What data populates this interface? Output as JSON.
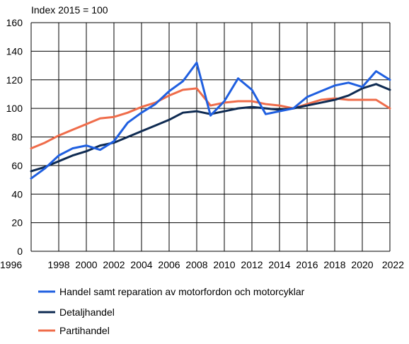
{
  "chart_data": {
    "type": "line",
    "title": "",
    "unit_label": "Index 2015 = 100",
    "xlabel": "",
    "ylabel": "",
    "x": [
      1996,
      1997,
      1998,
      1999,
      2000,
      2001,
      2002,
      2003,
      2004,
      2005,
      2006,
      2007,
      2008,
      2009,
      2010,
      2011,
      2012,
      2013,
      2014,
      2015,
      2016,
      2017,
      2018,
      2019,
      2020,
      2021,
      2022
    ],
    "xticks": [
      "1996",
      "1998",
      "2000",
      "2002",
      "2004",
      "2006",
      "2008",
      "2010",
      "2012",
      "2014",
      "2016",
      "2018",
      "2020",
      "2022"
    ],
    "xtick_values": [
      1996,
      1998,
      2000,
      2002,
      2004,
      2006,
      2008,
      2010,
      2012,
      2014,
      2016,
      2018,
      2020,
      2022
    ],
    "yticks": [
      "0",
      "20",
      "40",
      "60",
      "80",
      "100",
      "120",
      "140",
      "160"
    ],
    "ytick_values": [
      0,
      20,
      40,
      60,
      80,
      100,
      120,
      140,
      160
    ],
    "xlim": [
      1996,
      2022
    ],
    "ylim": [
      0,
      160
    ],
    "grid": true,
    "legend_position": "bottom",
    "series": [
      {
        "name": "Handel samt reparation av motorfordon och motorcyklar",
        "color": "#1f5fe0",
        "values": [
          51,
          58,
          67,
          72,
          74,
          71,
          77,
          90,
          97,
          103,
          112,
          119,
          132,
          95,
          105,
          121,
          113,
          96,
          98,
          100,
          108,
          112,
          116,
          118,
          115,
          126,
          120
        ]
      },
      {
        "name": "Detaljhandel",
        "color": "#0f2b52",
        "values": [
          56,
          59,
          63,
          67,
          70,
          74,
          76,
          80,
          84,
          88,
          92,
          97,
          98,
          96,
          98,
          100,
          101,
          100,
          99,
          100,
          102,
          104,
          106,
          109,
          114,
          117,
          113
        ]
      },
      {
        "name": "Partihandel",
        "color": "#ef6c4a",
        "values": [
          72,
          76,
          81,
          85,
          89,
          93,
          94,
          97,
          101,
          104,
          109,
          113,
          114,
          102,
          104,
          105,
          105,
          103,
          102,
          100,
          103,
          106,
          107,
          106,
          106,
          106,
          100
        ]
      }
    ]
  }
}
